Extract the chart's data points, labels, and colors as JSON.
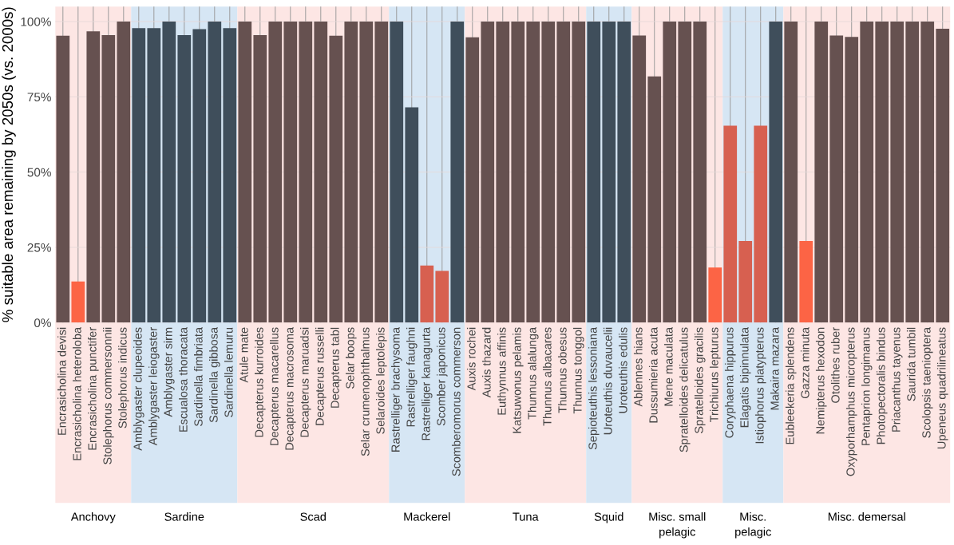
{
  "chart_data": {
    "type": "bar",
    "ylabel": "% suitable area remaining by 2050s (vs. 2000s)",
    "categories": [
      "Encrasicholina devisi",
      "Encrasicholina heteroloba",
      "Encrasicholina punctifer",
      "Stolephorus commersonnii",
      "Stolephorus indicus",
      "Amblygaster clupeoides",
      "Amblygaster leiogaster",
      "Amblygaster sirm",
      "Escualosa thoracata",
      "Sardinella fimbriata",
      "Sardinella gibbosa",
      "Sardinella lemuru",
      "Atule mate",
      "Decapterus kurroides",
      "Decapterus macarellus",
      "Decapterus macrosoma",
      "Decapterus maruadsi",
      "Decapterus russelli",
      "Decapterus tabl",
      "Selar boops",
      "Selar crumenophthalmus",
      "Selaroides leptolepis",
      "Rastrelliger brachysoma",
      "Rastrelliger faughni",
      "Rastrelliger kanagurta",
      "Scomber japonicus",
      "Scomberomorus commerson",
      "Auxis rochei",
      "Auxis thazard",
      "Euthynnus affinis",
      "Katsuwonus pelamis",
      "Thunnus alalunga",
      "Thunnus albacares",
      "Thunnus obesus",
      "Thunnus tonggol",
      "Sepioteuthis lessoniana",
      "Uroteuthis duvaucelii",
      "Uroteuthis edulis",
      "Ablennes hians",
      "Dussumieria acuta",
      "Mene maculata",
      "Spratelloides delicatulus",
      "Spratelloides gracilis",
      "Trichiurus lepturus",
      "Coryphaena hippurus",
      "Elagatis bipinnulata",
      "Istiophorus platypterus",
      "Makaira mazara",
      "Eubleekeria splendens",
      "Gazza minuta",
      "Nemipterus hexodon",
      "Otolithes ruber",
      "Oxyporhamphus micropterus",
      "Pentaprion longimanus",
      "Photopectoralis bindus",
      "Priacanthus tayenus",
      "Saurida tumbil",
      "Scolopsis taeniopterа",
      "Upeneus quadrilineatus"
    ],
    "values": [
      95.3,
      13.7,
      96.8,
      95.5,
      100,
      97.8,
      97.8,
      100,
      95.5,
      97.5,
      100,
      97.8,
      100,
      95.5,
      100,
      100,
      100,
      100,
      95.3,
      100,
      100,
      100,
      100,
      71.5,
      19,
      17.2,
      100,
      94.8,
      100,
      100,
      100,
      100,
      100,
      100,
      100,
      100,
      100,
      100,
      95.4,
      81.8,
      100,
      100,
      100,
      18.3,
      65.4,
      27.1,
      65.4,
      100,
      100,
      27.1,
      100,
      95.4,
      94.9,
      100,
      100,
      100,
      100,
      100,
      97.6
    ],
    "colors": [
      "#665150",
      "#fc6445",
      "#665150",
      "#665150",
      "#665150",
      "#3f4e5b",
      "#3f4e5b",
      "#3f4e5b",
      "#3f4e5b",
      "#3f4e5b",
      "#3f4e5b",
      "#3f4e5b",
      "#665150",
      "#665150",
      "#665150",
      "#665150",
      "#665150",
      "#665150",
      "#665150",
      "#665150",
      "#665150",
      "#665150",
      "#3f4e5b",
      "#3f4e5b",
      "#d76050",
      "#d76050",
      "#3f4e5b",
      "#665150",
      "#665150",
      "#665150",
      "#665150",
      "#665150",
      "#665150",
      "#665150",
      "#665150",
      "#3f4e5b",
      "#3f4e5b",
      "#3f4e5b",
      "#665150",
      "#665150",
      "#665150",
      "#665150",
      "#665150",
      "#fc6445",
      "#d76050",
      "#d76050",
      "#d76050",
      "#3f4e5b",
      "#665150",
      "#fc6445",
      "#665150",
      "#665150",
      "#665150",
      "#665150",
      "#665150",
      "#665150",
      "#665150",
      "#665150",
      "#665150"
    ],
    "ylim": [
      0,
      105
    ],
    "yticks": [
      {
        "value": 0,
        "label": "0%"
      },
      {
        "value": 25,
        "label": "25%"
      },
      {
        "value": 50,
        "label": "50%"
      },
      {
        "value": 75,
        "label": "75%"
      },
      {
        "value": 100,
        "label": "100%"
      }
    ],
    "grid": true,
    "bands": [
      {
        "axis": "x",
        "from": "Encrasicholina devisi",
        "to": "Stolephorus indicus",
        "label": "Anchovy",
        "color": "#fde6e4"
      },
      {
        "axis": "x",
        "from": "Amblygaster clupeoides",
        "to": "Sardinella lemuru",
        "label": "Sardine",
        "color": "#d6e6f4"
      },
      {
        "axis": "x",
        "from": "Atule mate",
        "to": "Selaroides leptolepis",
        "label": "Scad",
        "color": "#fde6e4"
      },
      {
        "axis": "x",
        "from": "Rastrelliger brachysoma",
        "to": "Scomberomorus commerson",
        "label": "Mackerel",
        "color": "#d6e6f4"
      },
      {
        "axis": "x",
        "from": "Auxis rochei",
        "to": "Thunnus tonggol",
        "label": "Tuna",
        "color": "#fde6e4"
      },
      {
        "axis": "x",
        "from": "Sepioteuthis lessoniana",
        "to": "Uroteuthis edulis",
        "label": "Squid",
        "color": "#d6e6f4"
      },
      {
        "axis": "x",
        "from": "Ablennes hians",
        "to": "Trichiurus lepturus",
        "label": "Misc. small\npelagic",
        "color": "#fde6e4"
      },
      {
        "axis": "x",
        "from": "Coryphaena hippurus",
        "to": "Makaira mazara",
        "label": "Misc.\npelagic",
        "color": "#d6e6f4"
      },
      {
        "axis": "x",
        "from": "Eubleekeria splendens",
        "to": "Upeneus quadrilineatus",
        "label": "Misc. demersal",
        "color": "#fde6e4"
      }
    ]
  }
}
